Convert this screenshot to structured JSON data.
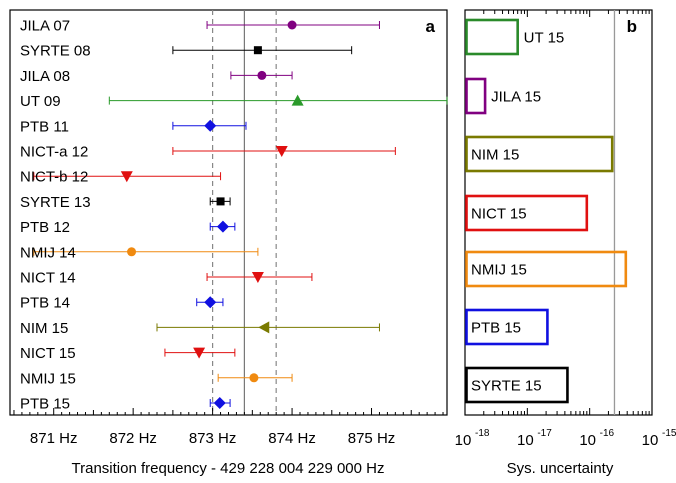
{
  "chart_data": [
    {
      "panel_label": "a",
      "type": "scatter",
      "xlabel": "Transition frequency - 429 228 004 229 000 Hz",
      "xlim": [
        870.45,
        875.95
      ],
      "xticks": [
        871,
        872,
        873,
        874,
        875
      ],
      "xtick_unit": "Hz",
      "reference_lines": [
        {
          "x": 873.0,
          "style": "dashed",
          "color": "#888888"
        },
        {
          "x": 873.4,
          "style": "solid",
          "color": "#777777"
        },
        {
          "x": 873.8,
          "style": "dashed",
          "color": "#888888"
        }
      ],
      "points": [
        {
          "label": "JILA 07",
          "x": 874.0,
          "xerr_lo": 872.93,
          "xerr_hi": 875.1,
          "marker": "circle",
          "color": "#800080"
        },
        {
          "label": "SYRTE 08",
          "x": 873.57,
          "xerr_lo": 872.5,
          "xerr_hi": 874.75,
          "marker": "square",
          "color": "#000000"
        },
        {
          "label": "JILA 08",
          "x": 873.62,
          "xerr_lo": 873.23,
          "xerr_hi": 874.0,
          "marker": "circle",
          "color": "#800080"
        },
        {
          "label": "UT 09",
          "x": 874.07,
          "xerr_lo": 871.7,
          "xerr_hi": 875.95,
          "marker": "triangle-up",
          "color": "#2a9a2a"
        },
        {
          "label": "PTB 11",
          "x": 872.97,
          "xerr_lo": 872.5,
          "xerr_hi": 873.42,
          "marker": "diamond",
          "color": "#1010e0"
        },
        {
          "label": "NICT-a 12",
          "x": 873.87,
          "xerr_lo": 872.5,
          "xerr_hi": 875.3,
          "marker": "triangle-down",
          "color": "#e01010"
        },
        {
          "label": "NICT-b 12",
          "x": 871.92,
          "xerr_lo": 870.75,
          "xerr_hi": 873.1,
          "marker": "triangle-down",
          "color": "#e01010"
        },
        {
          "label": "SYRTE 13",
          "x": 873.1,
          "xerr_lo": 872.97,
          "xerr_hi": 873.22,
          "marker": "square",
          "color": "#000000"
        },
        {
          "label": "PTB 12",
          "x": 873.13,
          "xerr_lo": 872.97,
          "xerr_hi": 873.28,
          "marker": "diamond",
          "color": "#1010e0"
        },
        {
          "label": "NMIJ 14",
          "x": 871.98,
          "xerr_lo": 870.75,
          "xerr_hi": 873.57,
          "marker": "circle",
          "color": "#f08a10"
        },
        {
          "label": "NICT 14",
          "x": 873.57,
          "xerr_lo": 872.93,
          "xerr_hi": 874.25,
          "marker": "triangle-down",
          "color": "#e01010"
        },
        {
          "label": "PTB 14",
          "x": 872.97,
          "xerr_lo": 872.8,
          "xerr_hi": 873.13,
          "marker": "diamond",
          "color": "#1010e0"
        },
        {
          "label": "NIM 15",
          "x": 873.65,
          "xerr_lo": 872.3,
          "xerr_hi": 875.1,
          "marker": "triangle-left",
          "color": "#7a7a00"
        },
        {
          "label": "NICT 15",
          "x": 872.83,
          "xerr_lo": 872.4,
          "xerr_hi": 873.28,
          "marker": "triangle-down",
          "color": "#e01010"
        },
        {
          "label": "NMIJ 15",
          "x": 873.52,
          "xerr_lo": 873.07,
          "xerr_hi": 874.0,
          "marker": "circle",
          "color": "#f08a10"
        },
        {
          "label": "PTB 15",
          "x": 873.09,
          "xerr_lo": 872.97,
          "xerr_hi": 873.22,
          "marker": "diamond",
          "color": "#1010e0"
        }
      ]
    },
    {
      "panel_label": "b",
      "type": "bar",
      "orientation": "horizontal",
      "xscale": "log",
      "xlabel": "Sys. uncertainty",
      "xlim_exponents": [
        -18,
        -15
      ],
      "xtick_base": "10",
      "reference_line_x": 2.5e-16,
      "bars": [
        {
          "label": "UT 15",
          "value": 7e-18,
          "color": "#2a8a2a"
        },
        {
          "label": "JILA 15",
          "value": 2.1e-18,
          "color": "#800080"
        },
        {
          "label": "NIM 15",
          "value": 2.3e-16,
          "color": "#7a7a00"
        },
        {
          "label": "NICT 15",
          "value": 9e-17,
          "color": "#e01010"
        },
        {
          "label": "NMIJ 15",
          "value": 3.8e-16,
          "color": "#f08a10"
        },
        {
          "label": "PTB 15",
          "value": 2.1e-17,
          "color": "#1010e0"
        },
        {
          "label": "SYRTE 15",
          "value": 4.4e-17,
          "color": "#000000"
        }
      ]
    }
  ]
}
